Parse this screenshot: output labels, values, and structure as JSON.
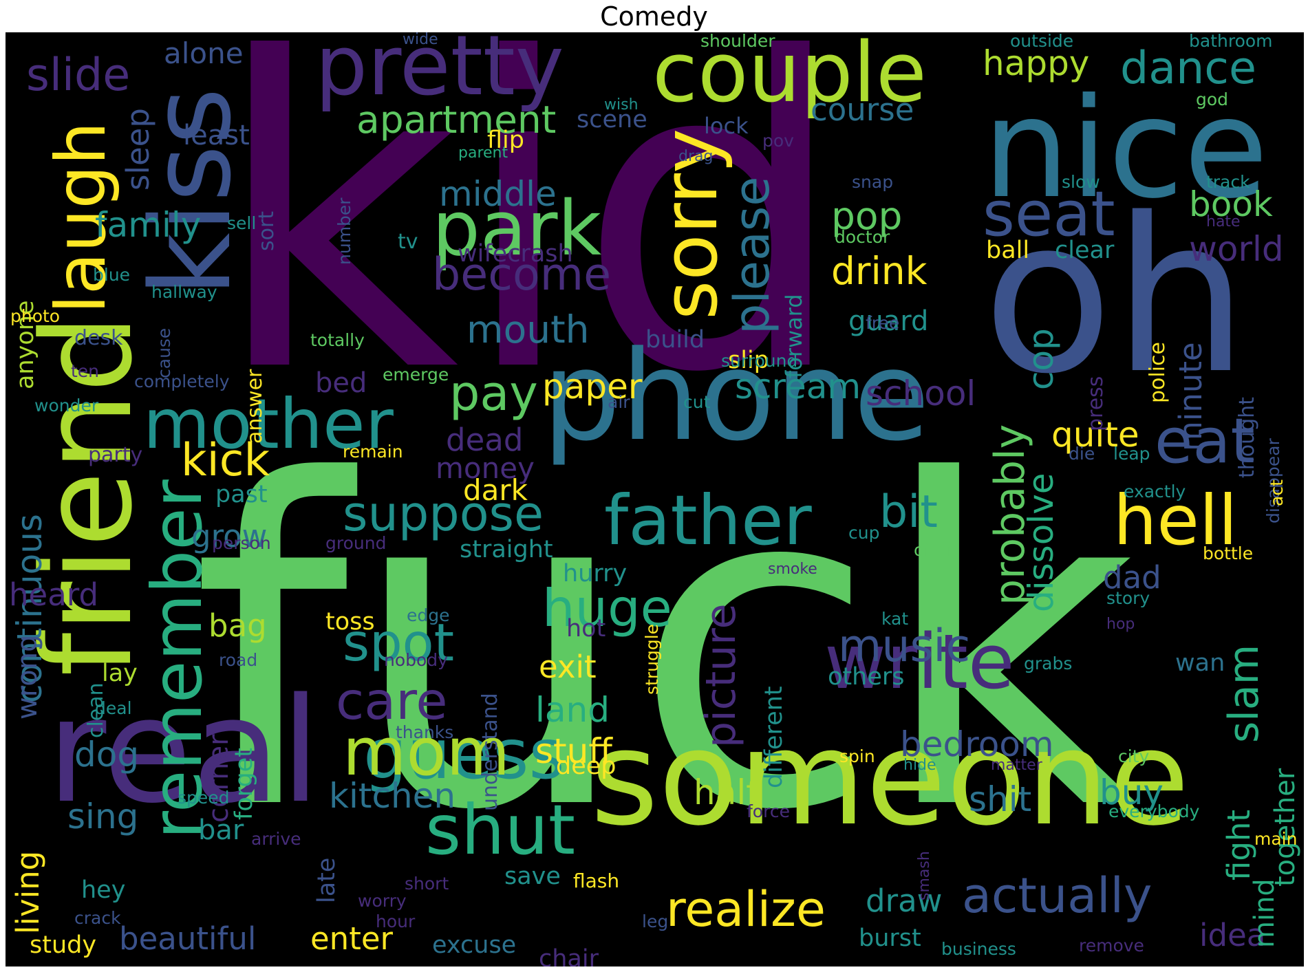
{
  "title": "Comedy",
  "palette": {
    "d1": "#440154",
    "d2": "#472d7b",
    "d3": "#3b528b",
    "d4": "#2c728e",
    "d5": "#21918c",
    "d6": "#28ae80",
    "d7": "#5ec962",
    "d8": "#addc30",
    "d9": "#fde725",
    "d10": "#7ad151",
    "d11": "#3e4a89",
    "d12": "#35b779"
  },
  "words": [
    {
      "text": "kid",
      "color": "d1"
    },
    {
      "text": "fuck",
      "color": "d7"
    },
    {
      "text": "oh",
      "color": "d3"
    },
    {
      "text": "nice",
      "color": "d4"
    },
    {
      "text": "phone",
      "color": "d4"
    },
    {
      "text": "someone",
      "color": "d8"
    },
    {
      "text": "real",
      "color": "d2"
    },
    {
      "text": "friend",
      "color": "d8"
    },
    {
      "text": "kiss",
      "color": "d3"
    },
    {
      "text": "pretty",
      "color": "d2"
    },
    {
      "text": "couple",
      "color": "d8"
    },
    {
      "text": "laugh",
      "color": "d9"
    },
    {
      "text": "remember",
      "color": "d6"
    },
    {
      "text": "mother",
      "color": "d5"
    },
    {
      "text": "park",
      "color": "d7"
    },
    {
      "text": "sorry",
      "color": "d9"
    },
    {
      "text": "seat",
      "color": "d3"
    },
    {
      "text": "eat",
      "color": "d3"
    },
    {
      "text": "hell",
      "color": "d9"
    },
    {
      "text": "father",
      "color": "d5"
    },
    {
      "text": "write",
      "color": "d2"
    },
    {
      "text": "guess",
      "color": "d5"
    },
    {
      "text": "shut",
      "color": "d6"
    },
    {
      "text": "mom",
      "color": "d8"
    },
    {
      "text": "realize",
      "color": "d9"
    },
    {
      "text": "actually",
      "color": "d3"
    },
    {
      "text": "dance",
      "color": "d5"
    },
    {
      "text": "happy",
      "color": "d8"
    },
    {
      "text": "slide",
      "color": "d2"
    },
    {
      "text": "alone",
      "color": "d3"
    },
    {
      "text": "apartment",
      "color": "d7"
    },
    {
      "text": "course",
      "color": "d4"
    },
    {
      "text": "middle",
      "color": "d4"
    },
    {
      "text": "become",
      "color": "d2"
    },
    {
      "text": "mouth",
      "color": "d4"
    },
    {
      "text": "please",
      "color": "d4"
    },
    {
      "text": "pop",
      "color": "d7"
    },
    {
      "text": "drink",
      "color": "d9"
    },
    {
      "text": "book",
      "color": "d7"
    },
    {
      "text": "world",
      "color": "d2"
    },
    {
      "text": "family",
      "color": "d5"
    },
    {
      "text": "sleep",
      "color": "d3"
    },
    {
      "text": "least",
      "color": "d3"
    },
    {
      "text": "kick",
      "color": "d9"
    },
    {
      "text": "pay",
      "color": "d7"
    },
    {
      "text": "paper",
      "color": "d9"
    },
    {
      "text": "scream",
      "color": "d5"
    },
    {
      "text": "school",
      "color": "d2"
    },
    {
      "text": "quite",
      "color": "d9"
    },
    {
      "text": "suppose",
      "color": "d5"
    },
    {
      "text": "bit",
      "color": "d5"
    },
    {
      "text": "probably",
      "color": "d7"
    },
    {
      "text": "dissolve",
      "color": "d6"
    },
    {
      "text": "cop",
      "color": "d5"
    },
    {
      "text": "minute",
      "color": "d3"
    },
    {
      "text": "huge",
      "color": "d6"
    },
    {
      "text": "spot",
      "color": "d5"
    },
    {
      "text": "care",
      "color": "d2"
    },
    {
      "text": "music",
      "color": "d3"
    },
    {
      "text": "picture",
      "color": "d2"
    },
    {
      "text": "slam",
      "color": "d6"
    },
    {
      "text": "bedroom",
      "color": "d3"
    },
    {
      "text": "shit",
      "color": "d4"
    },
    {
      "text": "buy",
      "color": "d5"
    },
    {
      "text": "beautiful",
      "color": "d3"
    },
    {
      "text": "enter",
      "color": "d9"
    },
    {
      "text": "kitchen",
      "color": "d4"
    },
    {
      "text": "dog",
      "color": "d4"
    },
    {
      "text": "sing",
      "color": "d4"
    },
    {
      "text": "continuous",
      "color": "d4"
    },
    {
      "text": "heard",
      "color": "d2"
    },
    {
      "text": "wrong",
      "color": "d3"
    },
    {
      "text": "living",
      "color": "d9"
    },
    {
      "text": "study",
      "color": "d9"
    },
    {
      "text": "grow",
      "color": "d4"
    },
    {
      "text": "dead",
      "color": "d2"
    },
    {
      "text": "money",
      "color": "d2"
    },
    {
      "text": "dark",
      "color": "d9"
    },
    {
      "text": "bag",
      "color": "d8"
    },
    {
      "text": "exit",
      "color": "d9"
    },
    {
      "text": "land",
      "color": "d6"
    },
    {
      "text": "stuff",
      "color": "d9"
    },
    {
      "text": "half",
      "color": "d8"
    },
    {
      "text": "dad",
      "color": "d3"
    },
    {
      "text": "draw",
      "color": "d5"
    },
    {
      "text": "burst",
      "color": "d5"
    },
    {
      "text": "idea",
      "color": "d2"
    },
    {
      "text": "fight",
      "color": "d6"
    },
    {
      "text": "mind",
      "color": "d6"
    },
    {
      "text": "together",
      "color": "d6"
    },
    {
      "text": "wan",
      "color": "d4"
    },
    {
      "text": "excuse",
      "color": "d4"
    },
    {
      "text": "chair",
      "color": "d2"
    },
    {
      "text": "save",
      "color": "d5"
    },
    {
      "text": "flash",
      "color": "d9"
    },
    {
      "text": "hey",
      "color": "d5"
    },
    {
      "text": "late",
      "color": "d3"
    },
    {
      "text": "bar",
      "color": "d5"
    },
    {
      "text": "corner",
      "color": "d2"
    },
    {
      "text": "forget",
      "color": "d6"
    },
    {
      "text": "guard",
      "color": "d5"
    },
    {
      "text": "slip",
      "color": "d9"
    },
    {
      "text": "build",
      "color": "d3"
    },
    {
      "text": "bed",
      "color": "d2"
    },
    {
      "text": "desk",
      "color": "d3"
    },
    {
      "text": "hurry",
      "color": "d5"
    },
    {
      "text": "straight",
      "color": "d5"
    },
    {
      "text": "toss",
      "color": "d9"
    },
    {
      "text": "deep",
      "color": "d9"
    },
    {
      "text": "different",
      "color": "d5"
    },
    {
      "text": "understand",
      "color": "d3"
    },
    {
      "text": "others",
      "color": "d5"
    },
    {
      "text": "press",
      "color": "d2"
    },
    {
      "text": "thought",
      "color": "d3"
    },
    {
      "text": "police",
      "color": "d9"
    },
    {
      "text": "clear",
      "color": "d5"
    },
    {
      "text": "ball",
      "color": "d9"
    },
    {
      "text": "flip",
      "color": "d9"
    },
    {
      "text": "scene",
      "color": "d3"
    },
    {
      "text": "lock",
      "color": "d3"
    },
    {
      "text": "forward",
      "color": "d5"
    },
    {
      "text": "tv",
      "color": "d5"
    },
    {
      "text": "wifecrash",
      "color": "d2"
    },
    {
      "text": "sort",
      "color": "d3"
    },
    {
      "text": "anyone",
      "color": "d8"
    },
    {
      "text": "number",
      "color": "d3"
    },
    {
      "text": "answer",
      "color": "d9"
    },
    {
      "text": "cause",
      "color": "d3"
    },
    {
      "text": "past",
      "color": "d5"
    },
    {
      "text": "party",
      "color": "d2"
    },
    {
      "text": "lay",
      "color": "d8"
    },
    {
      "text": "clean",
      "color": "d5"
    },
    {
      "text": "hot",
      "color": "d2"
    },
    {
      "text": "wide",
      "color": "d3"
    },
    {
      "text": "shoulder",
      "color": "d7"
    },
    {
      "text": "outside",
      "color": "d5"
    },
    {
      "text": "bathroom",
      "color": "d5"
    },
    {
      "text": "wish",
      "color": "d5"
    },
    {
      "text": "god",
      "color": "d7"
    },
    {
      "text": "parent",
      "color": "d6"
    },
    {
      "text": "pov",
      "color": "d2"
    },
    {
      "text": "drag",
      "color": "d3"
    },
    {
      "text": "snap",
      "color": "d3"
    },
    {
      "text": "slow",
      "color": "d5"
    },
    {
      "text": "track",
      "color": "d5"
    },
    {
      "text": "hate",
      "color": "d2"
    },
    {
      "text": "doctor",
      "color": "d7"
    },
    {
      "text": "sell",
      "color": "d5"
    },
    {
      "text": "blue",
      "color": "d5"
    },
    {
      "text": "hallway",
      "color": "d5"
    },
    {
      "text": "photo",
      "color": "d9"
    },
    {
      "text": "totally",
      "color": "d7"
    },
    {
      "text": "free",
      "color": "d3"
    },
    {
      "text": "surround",
      "color": "d5"
    },
    {
      "text": "ten",
      "color": "d2"
    },
    {
      "text": "completely",
      "color": "d3"
    },
    {
      "text": "emerge",
      "color": "d7"
    },
    {
      "text": "wonder",
      "color": "d5"
    },
    {
      "text": "air",
      "color": "d3"
    },
    {
      "text": "cut",
      "color": "d5"
    },
    {
      "text": "remain",
      "color": "d9"
    },
    {
      "text": "die",
      "color": "d3"
    },
    {
      "text": "leap",
      "color": "d5"
    },
    {
      "text": "exactly",
      "color": "d5"
    },
    {
      "text": "disappear",
      "color": "d3"
    },
    {
      "text": "act",
      "color": "d9"
    },
    {
      "text": "person",
      "color": "d2"
    },
    {
      "text": "ground",
      "color": "d2"
    },
    {
      "text": "cup",
      "color": "d5"
    },
    {
      "text": "offer",
      "color": "d7"
    },
    {
      "text": "bottle",
      "color": "d9"
    },
    {
      "text": "smoke",
      "color": "d2"
    },
    {
      "text": "story",
      "color": "d5"
    },
    {
      "text": "hop",
      "color": "d2"
    },
    {
      "text": "edge",
      "color": "d4"
    },
    {
      "text": "struggle",
      "color": "d9"
    },
    {
      "text": "kat",
      "color": "d5"
    },
    {
      "text": "road",
      "color": "d3"
    },
    {
      "text": "nobody",
      "color": "d2"
    },
    {
      "text": "grabs",
      "color": "d5"
    },
    {
      "text": "deal",
      "color": "d5"
    },
    {
      "text": "thanks",
      "color": "d3"
    },
    {
      "text": "spin",
      "color": "d9"
    },
    {
      "text": "hide",
      "color": "d5"
    },
    {
      "text": "matter",
      "color": "d2"
    },
    {
      "text": "city",
      "color": "d7"
    },
    {
      "text": "speed",
      "color": "d5"
    },
    {
      "text": "force",
      "color": "d2"
    },
    {
      "text": "everybody",
      "color": "d6"
    },
    {
      "text": "arrive",
      "color": "d2"
    },
    {
      "text": "main",
      "color": "d9"
    },
    {
      "text": "smash",
      "color": "d2"
    },
    {
      "text": "short",
      "color": "d2"
    },
    {
      "text": "worry",
      "color": "d2"
    },
    {
      "text": "crack",
      "color": "d3"
    },
    {
      "text": "hour",
      "color": "d2"
    },
    {
      "text": "leg",
      "color": "d3"
    },
    {
      "text": "business",
      "color": "d5"
    },
    {
      "text": "remove",
      "color": "d2"
    }
  ]
}
